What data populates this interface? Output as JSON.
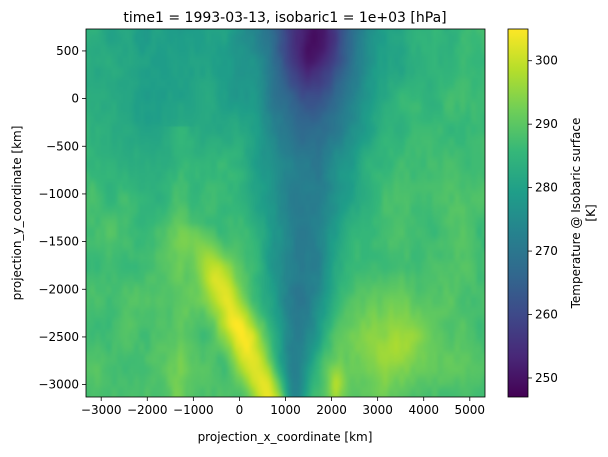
{
  "chart_data": {
    "type": "heatmap",
    "title": "time1 = 1993-03-13, isobaric1 = 1e+03 [hPa]",
    "xlabel": "projection_x_coordinate [km]",
    "ylabel": "projection_y_coordinate [km]",
    "xlim": [
      -3330,
      5330
    ],
    "ylim": [
      -3130,
      730
    ],
    "xticks": [
      -3000,
      -2000,
      -1000,
      0,
      1000,
      2000,
      3000,
      4000,
      5000
    ],
    "xtick_labels": [
      "−3000",
      "−2000",
      "−1000",
      "0",
      "1000",
      "2000",
      "3000",
      "4000",
      "5000"
    ],
    "yticks": [
      500,
      0,
      -500,
      -1000,
      -1500,
      -2000,
      -2500,
      -3000
    ],
    "ytick_labels": [
      "500",
      "0",
      "−500",
      "−1000",
      "−1500",
      "−2000",
      "−2500",
      "−3000"
    ],
    "colorbar": {
      "label_line1": "Temperature @ Isobaric surface",
      "label_line2": "[K]",
      "range": [
        247,
        305
      ],
      "ticks": [
        250,
        260,
        270,
        280,
        290,
        300
      ],
      "tick_labels": [
        "250",
        "260",
        "270",
        "280",
        "290",
        "300"
      ],
      "colormap": "viridis"
    },
    "field_description": {
      "background_K": 288,
      "cold_tongue": {
        "min_K": 247,
        "center_x_km": 1600,
        "center_y_km": 650,
        "shape": "V-shaped cold wedge narrowing southward to about x=1200 km at y=-3100 km"
      },
      "warm_band_southwest": {
        "max_K": 304,
        "from_x_km": -1200,
        "to_x_km": 800,
        "y_range_km": [
          -3100,
          -1600
        ]
      },
      "warm_patch_southeast": {
        "max_K": 299,
        "x_km": 3300,
        "y_km": -2600
      },
      "northwest_region_K": 279
    }
  },
  "colors": {
    "axis": "#000000",
    "viridis_stops": [
      "#440154",
      "#482878",
      "#3e4989",
      "#31688e",
      "#26828e",
      "#1f9e89",
      "#35b779",
      "#6ece58",
      "#b5de2b",
      "#fde725"
    ]
  }
}
